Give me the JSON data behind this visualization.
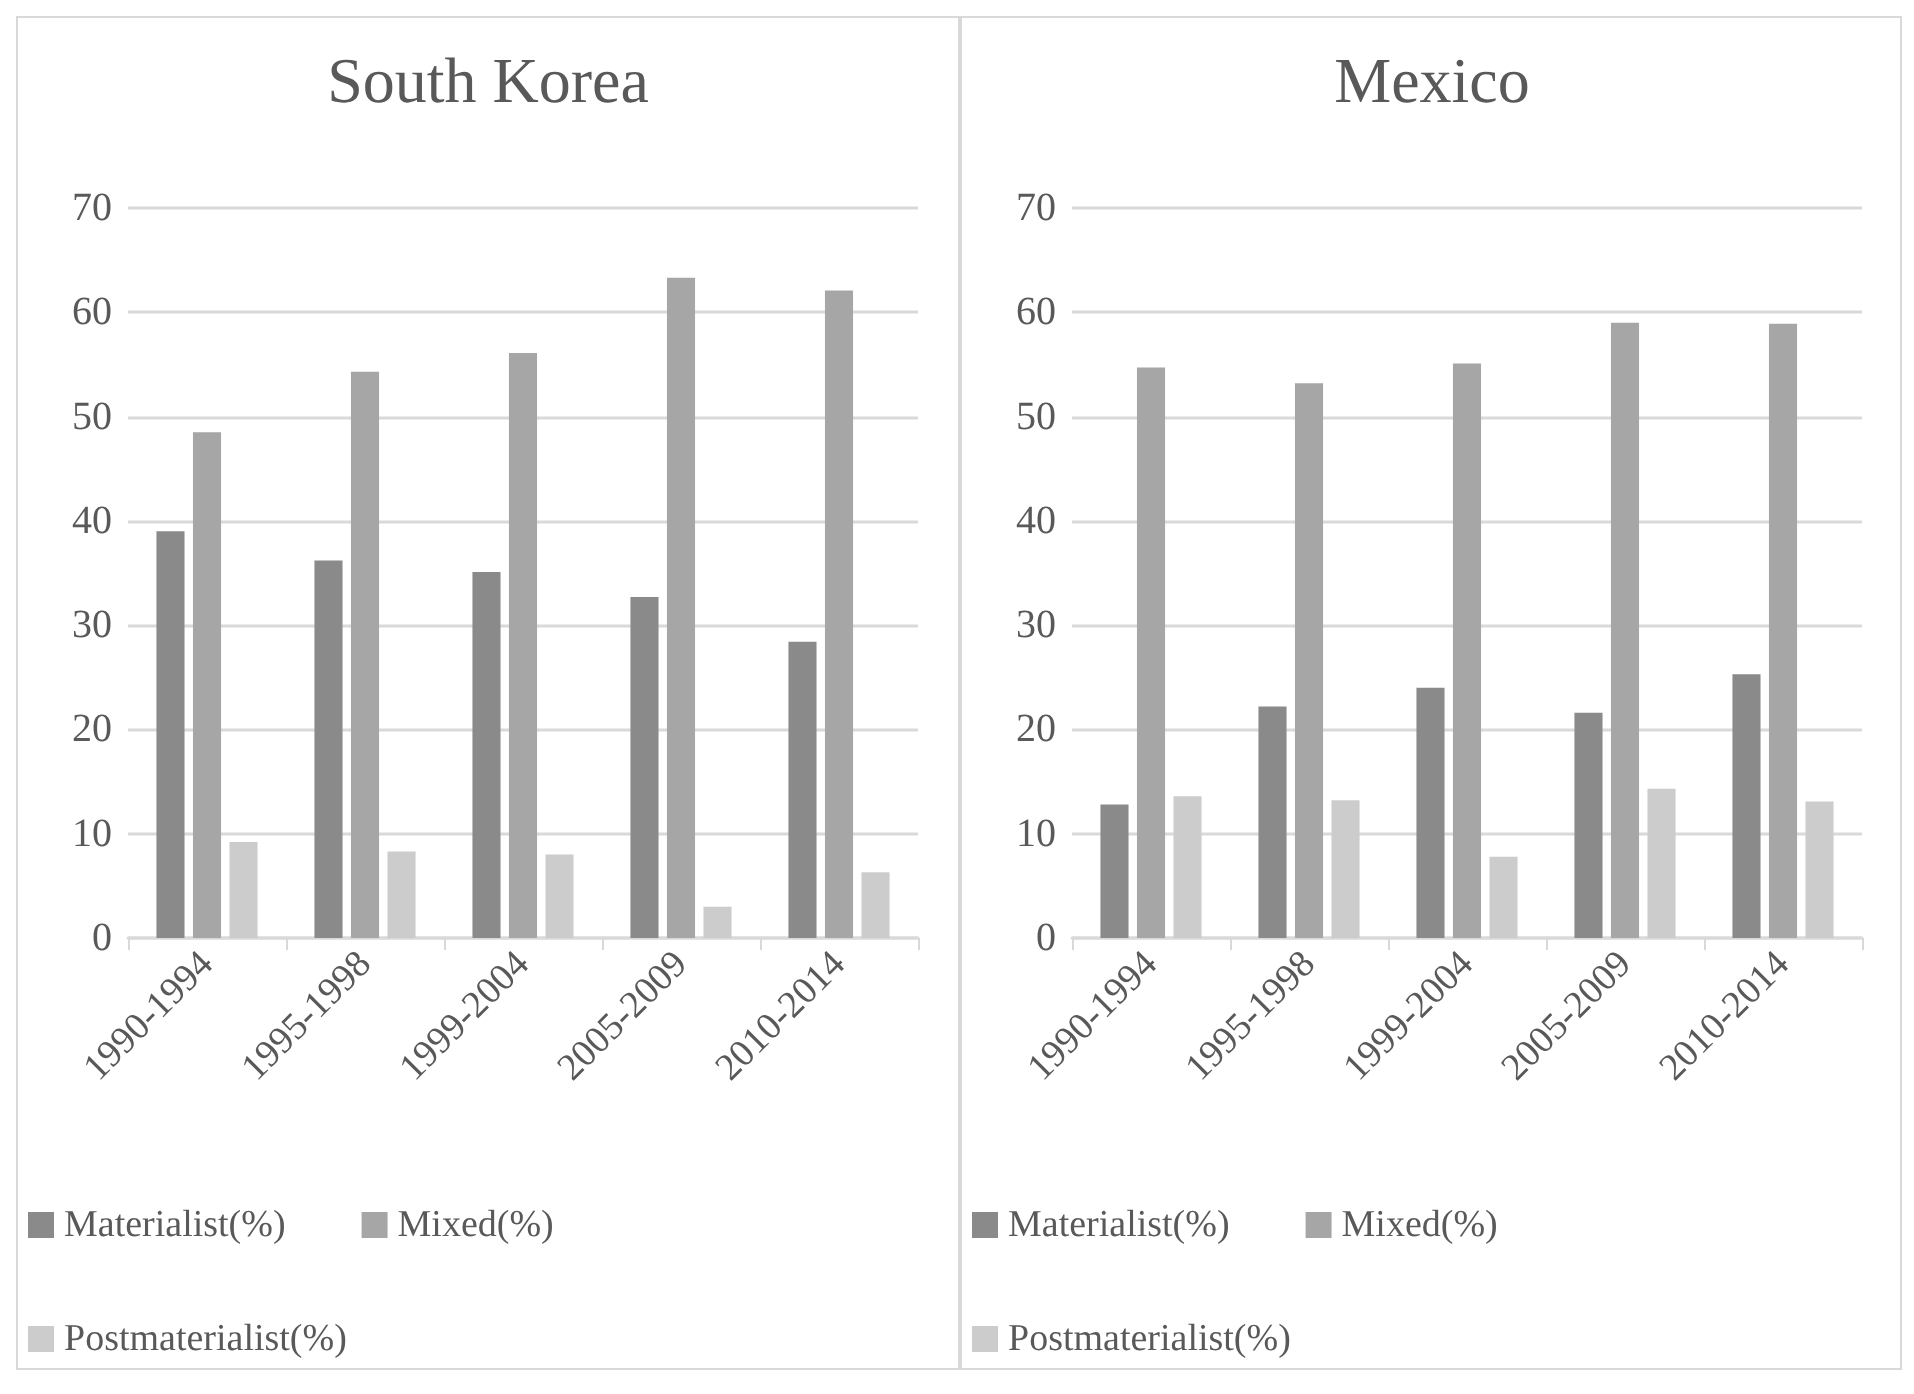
{
  "chart_data": [
    {
      "type": "bar",
      "title": "South Korea",
      "categories": [
        "1990-1994",
        "1995-1998",
        "1999-2004",
        "2005-2009",
        "2010-2014"
      ],
      "series": [
        {
          "name": "Materialist(%)",
          "color": "#8a8a8a",
          "values": [
            39.0,
            36.2,
            35.1,
            32.7,
            28.4
          ]
        },
        {
          "name": "Mixed(%)",
          "color": "#a6a6a6",
          "values": [
            48.5,
            54.3,
            56.1,
            63.3,
            62.1
          ]
        },
        {
          "name": "Postmaterialist(%)",
          "color": "#cccccc",
          "values": [
            9.2,
            8.3,
            8.0,
            3.0,
            6.3
          ]
        }
      ],
      "ylim": [
        0,
        70
      ],
      "yticks": [
        0,
        10,
        20,
        30,
        40,
        50,
        60,
        70
      ],
      "grid": "y",
      "legend": "bottom"
    },
    {
      "type": "bar",
      "title": "Mexico",
      "categories": [
        "1990-1994",
        "1995-1998",
        "1999-2004",
        "2005-2009",
        "2010-2014"
      ],
      "series": [
        {
          "name": "Materialist(%)",
          "color": "#8a8a8a",
          "values": [
            12.8,
            22.2,
            24.0,
            21.6,
            25.3
          ]
        },
        {
          "name": "Mixed(%)",
          "color": "#a6a6a6",
          "values": [
            54.7,
            53.2,
            55.1,
            59.0,
            58.9
          ]
        },
        {
          "name": "Postmaterialist(%)",
          "color": "#cccccc",
          "values": [
            13.6,
            13.2,
            7.8,
            14.3,
            13.1
          ]
        }
      ],
      "ylim": [
        0,
        70
      ],
      "yticks": [
        0,
        10,
        20,
        30,
        40,
        50,
        60,
        70
      ],
      "grid": "y",
      "legend": "bottom"
    }
  ]
}
